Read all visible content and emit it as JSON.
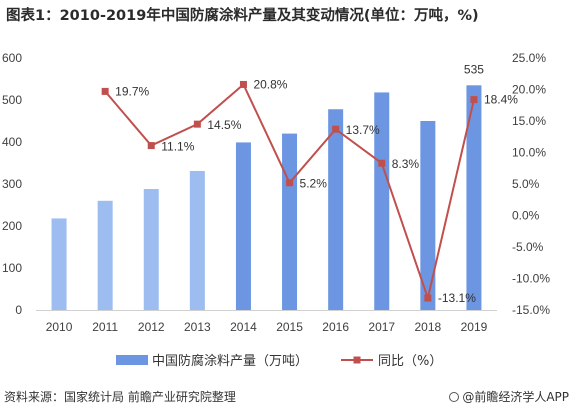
{
  "title": "图表1：2010-2019年中国防腐涂料产量及其变动情况(单位：万吨，%)",
  "source": "资料来源：国家统计局 前瞻产业研究院整理",
  "brand": "@前瞻经济学人APP",
  "colors": {
    "bar": "#6c96e2",
    "bar_light": "#9dbdf0",
    "line": "#c0504d",
    "axis": "#404040",
    "grid": "#e6e6e6"
  },
  "chart_data": {
    "type": "bar",
    "categories": [
      "2010",
      "2011",
      "2012",
      "2013",
      "2014",
      "2015",
      "2016",
      "2017",
      "2018",
      "2019"
    ],
    "series": [
      {
        "name": "中国防腐涂料产量（万吨）",
        "type": "bar",
        "axis": "left",
        "values": [
          218,
          260,
          288,
          331,
          399,
          420,
          478,
          518,
          450,
          535
        ]
      },
      {
        "name": "同比（%）",
        "type": "line",
        "axis": "right",
        "values": [
          null,
          19.7,
          11.1,
          14.5,
          20.8,
          5.2,
          13.7,
          8.3,
          -13.1,
          18.4
        ]
      }
    ],
    "bar_value_labels": [
      null,
      null,
      null,
      null,
      null,
      null,
      null,
      null,
      null,
      "535"
    ],
    "line_value_labels": [
      null,
      "19.7%",
      "11.1%",
      "14.5%",
      "20.8%",
      "5.2%",
      "13.7%",
      "8.3%",
      "-13.1%",
      "18.4%"
    ],
    "y_left": {
      "ticks": [
        "0",
        "100",
        "200",
        "300",
        "400",
        "500",
        "600"
      ],
      "range": [
        0,
        600
      ]
    },
    "y_right": {
      "ticks": [
        "-15.0%",
        "-10.0%",
        "-5.0%",
        "0.0%",
        "5.0%",
        "10.0%",
        "15.0%",
        "20.0%",
        "25.0%"
      ],
      "range": [
        -15,
        25
      ]
    },
    "legend": {
      "position": "bottom",
      "entries": [
        "中国防腐涂料产量（万吨）",
        "同比（%）"
      ]
    }
  }
}
